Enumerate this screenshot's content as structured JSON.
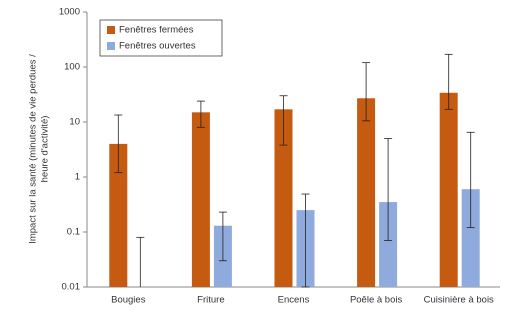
{
  "chart_data": {
    "type": "bar",
    "y_label": [
      "Impact sur la santé (minutes de vie perdues /",
      "heure d'activité)"
    ],
    "categories": [
      "Bougies",
      "Friture",
      "Encens",
      "Poêle à bois",
      "Cuisinière à bois"
    ],
    "series": [
      {
        "name": "Fenêtres fermées",
        "color": "#c55a11",
        "values": [
          4,
          15,
          17,
          27,
          34
        ],
        "error_low": [
          1.2,
          8,
          3.8,
          10.5,
          17
        ],
        "error_high": [
          13.4,
          24,
          30,
          120,
          170
        ]
      },
      {
        "name": "Fenêtres ouvertes",
        "color": "#8faadc",
        "values": [
          null,
          0.13,
          0.25,
          0.35,
          0.6
        ],
        "error_low": [
          null,
          0.03,
          0.01,
          0.07,
          0.12
        ],
        "error_high": [
          0.08,
          0.23,
          0.49,
          5,
          6.5
        ]
      }
    ],
    "log_y": true,
    "ylim": [
      0.01,
      1000
    ],
    "yticks": [
      1000,
      100,
      10,
      1,
      0.1,
      0.01
    ],
    "legend": "upper left"
  }
}
